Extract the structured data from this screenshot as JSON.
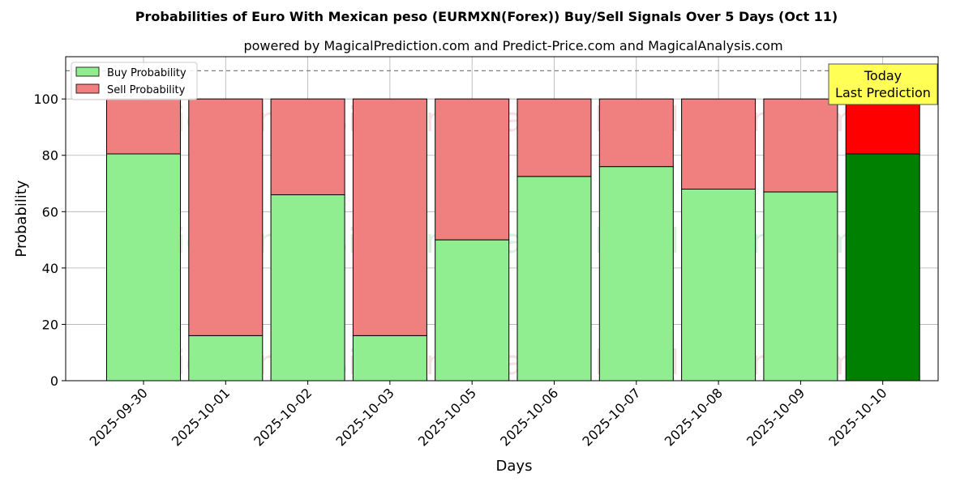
{
  "chart_data": {
    "type": "bar",
    "stacked": true,
    "title": "Probabilities of Euro With Mexican peso (EURMXN(Forex)) Buy/Sell Signals Over 5 Days (Oct 11)",
    "subtitle": "powered by MagicalPrediction.com and Predict-Price.com and MagicalAnalysis.com",
    "xlabel": "Days",
    "ylabel": "Probability",
    "ylim": [
      0,
      115
    ],
    "yticks": [
      0,
      20,
      40,
      60,
      80,
      100
    ],
    "grid": true,
    "legend_position": "top-left",
    "reference_line": 110,
    "categories": [
      "2025-09-30",
      "2025-10-01",
      "2025-10-02",
      "2025-10-03",
      "2025-10-05",
      "2025-10-06",
      "2025-10-07",
      "2025-10-08",
      "2025-10-09",
      "2025-10-10"
    ],
    "series": [
      {
        "name": "Buy Probability",
        "values": [
          80.5,
          16,
          66,
          16,
          50,
          72.5,
          76,
          68,
          67,
          80.5
        ],
        "color": "#90ee90",
        "highlight_color": "#008000"
      },
      {
        "name": "Sell Probability",
        "values": [
          19.5,
          84,
          34,
          84,
          50,
          27.5,
          24,
          32,
          33,
          19.5
        ],
        "color": "#f08080",
        "highlight_color": "#ff0000"
      }
    ],
    "highlight_index": 9,
    "annotation": {
      "line1": "Today",
      "line2": "Last Prediction",
      "bg_color": "#ffff55"
    },
    "watermarks": [
      "MagicalAnalysis.com",
      "MagicalPrediction.com"
    ]
  }
}
